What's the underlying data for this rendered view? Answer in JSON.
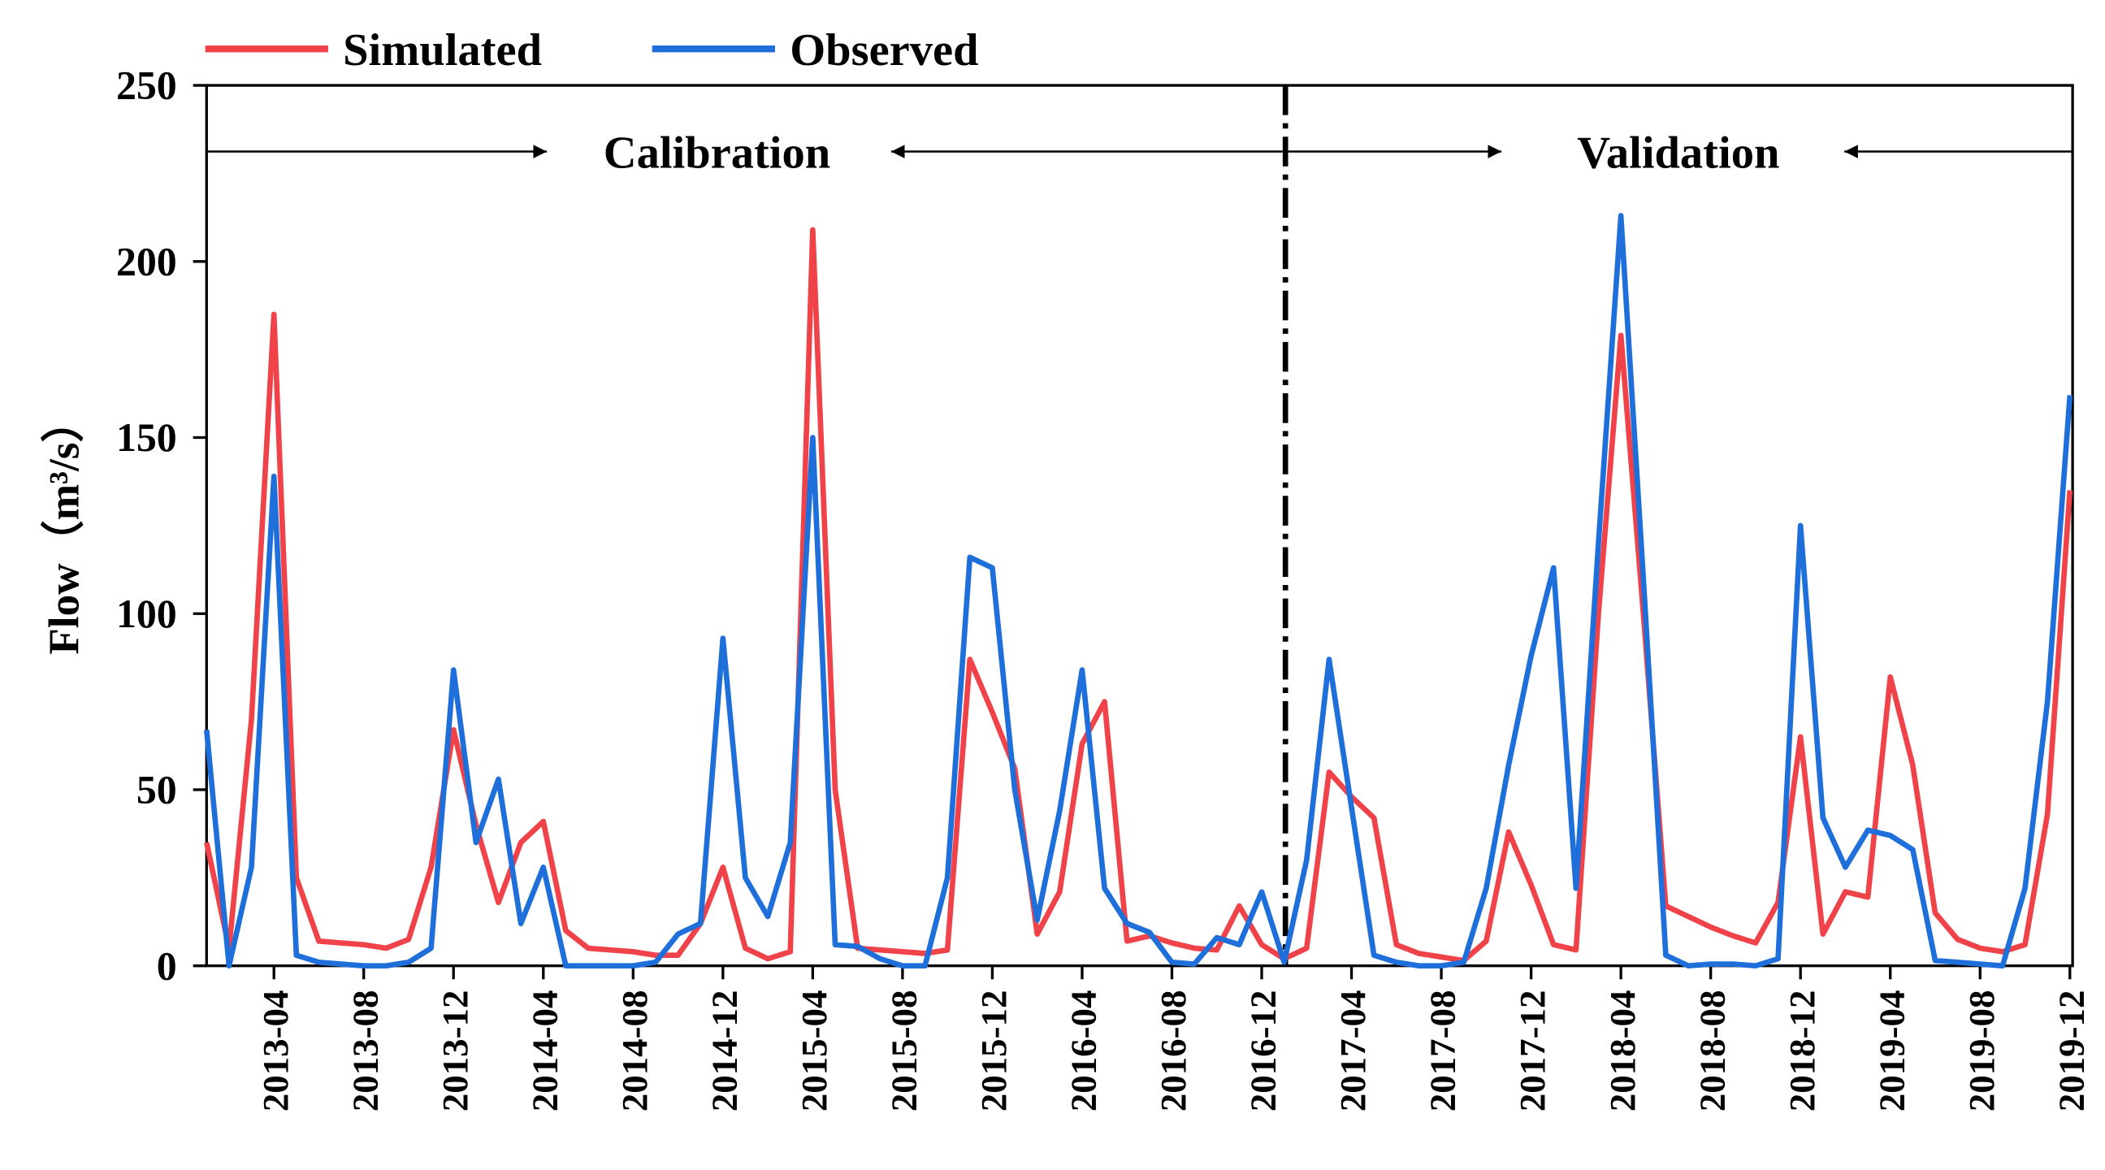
{
  "chart_data": {
    "type": "line",
    "y_label": "Flow（m³/s）",
    "annotations": [
      "Calibration",
      "Validation"
    ],
    "legend": "top-left",
    "categories": [
      null,
      null,
      null,
      "2013-04",
      null,
      null,
      null,
      "2013-08",
      null,
      null,
      null,
      "2013-12",
      null,
      null,
      null,
      "2014-04",
      null,
      null,
      null,
      "2014-08",
      null,
      null,
      null,
      "2014-12",
      null,
      null,
      null,
      "2015-04",
      null,
      null,
      null,
      "2015-08",
      null,
      null,
      null,
      "2015-12",
      null,
      null,
      null,
      "2016-04",
      null,
      null,
      null,
      "2016-08",
      null,
      null,
      null,
      "2016-12",
      null,
      null,
      null,
      "2017-04",
      null,
      null,
      null,
      "2017-08",
      null,
      null,
      null,
      "2017-12",
      null,
      null,
      null,
      "2018-04",
      null,
      null,
      null,
      "2018-08",
      null,
      null,
      null,
      "2018-12",
      null,
      null,
      null,
      "2019-04",
      null,
      null,
      null,
      "2019-08",
      null,
      null,
      null,
      "2019-12"
    ],
    "series": [
      {
        "name": "Simulated",
        "color": "#ef4249",
        "values": [
          35,
          5,
          70,
          185,
          25,
          7,
          6.5,
          6,
          5,
          7.5,
          28,
          67,
          40,
          18,
          35,
          41,
          10,
          5,
          4.5,
          4,
          3,
          3,
          12,
          28,
          5,
          2,
          4,
          209,
          50,
          5,
          4.5,
          4,
          3.5,
          4.5,
          87,
          72,
          56,
          9,
          21,
          63,
          75,
          7,
          8.5,
          6.5,
          5,
          4.5,
          17,
          6,
          2,
          5,
          55,
          48,
          42,
          6,
          3.5,
          2.5,
          1.5,
          7,
          38,
          23,
          6,
          4.5,
          100,
          179,
          100,
          17,
          14,
          11,
          8.5,
          6.5,
          18,
          65,
          9,
          21,
          19.5,
          82,
          57,
          15,
          7.5,
          5,
          4,
          6,
          43,
          135
        ]
      },
      {
        "name": "Observed",
        "color": "#1f6fdb",
        "values": [
          67,
          0,
          28,
          139,
          3,
          1,
          0.5,
          0,
          0,
          1,
          5,
          84,
          35,
          53,
          12,
          28,
          0,
          0,
          0,
          0,
          1,
          9,
          12,
          93,
          25,
          14,
          35,
          150,
          6,
          5.5,
          2,
          0,
          0,
          25,
          116,
          113,
          50,
          13,
          44,
          84,
          22,
          12,
          9.5,
          1,
          0.5,
          8,
          6,
          21,
          1,
          30,
          87,
          45,
          3,
          1,
          0,
          0,
          1,
          22,
          57,
          88,
          113,
          22,
          120,
          213,
          110,
          3,
          0,
          0.5,
          0.5,
          0,
          2,
          125,
          42,
          28,
          38.5,
          37,
          33,
          1.5,
          1,
          0.5,
          0,
          22,
          75,
          162
        ]
      }
    ],
    "ylim": [
      0,
      250
    ],
    "yticks": [
      0,
      50,
      100,
      150,
      200,
      250
    ],
    "grid": false
  }
}
